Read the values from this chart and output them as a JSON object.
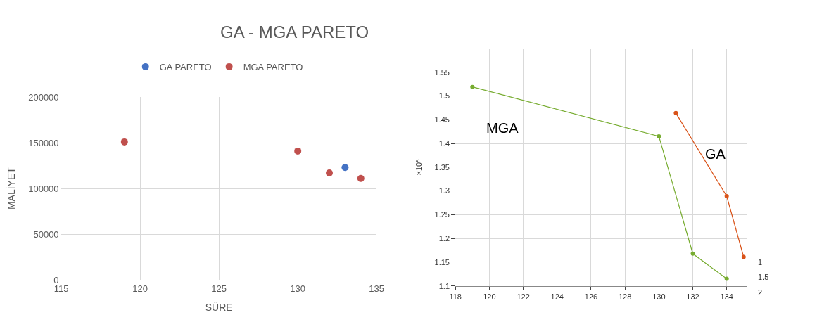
{
  "chart_data": [
    {
      "type": "scatter",
      "title": "GA - MGA PARETO",
      "xlabel": "SÜRE",
      "ylabel": "MALİYET",
      "xlim": [
        115,
        135
      ],
      "xticks": [
        115,
        120,
        125,
        130,
        135
      ],
      "ylim": [
        0,
        200000
      ],
      "yticks": [
        0,
        50000,
        100000,
        150000,
        200000
      ],
      "grid": true,
      "legend": "top",
      "marker": "circle",
      "series": [
        {
          "name": "GA PARETO",
          "color": "#4472c4",
          "x": [
            133
          ],
          "values": [
            123000
          ]
        },
        {
          "name": "MGA PARETO",
          "color": "#c0504d",
          "x": [
            119,
            130,
            132,
            134
          ],
          "values": [
            151000,
            141000,
            117000,
            111000
          ]
        }
      ]
    },
    {
      "type": "line",
      "ylabel": "×10⁵",
      "xlim": [
        118,
        135.2
      ],
      "xticks": [
        118,
        120,
        122,
        124,
        126,
        128,
        130,
        132,
        134
      ],
      "ylim": [
        1.1,
        1.6
      ],
      "yticks": [
        1.1,
        1.15,
        1.2,
        1.25,
        1.3,
        1.35,
        1.4,
        1.45,
        1.5,
        1.55
      ],
      "grid": true,
      "legend": false,
      "marker": "circle",
      "line_style": "solid",
      "annotations": [
        "1",
        "1.5",
        "2"
      ],
      "series": [
        {
          "name": "MGA",
          "color": "#77ac30",
          "x": [
            119,
            130,
            132,
            134
          ],
          "values": [
            1.519,
            1.415,
            1.168,
            1.115
          ]
        },
        {
          "name": "GA",
          "color": "#d95319",
          "x": [
            131,
            134,
            135
          ],
          "values": [
            1.464,
            1.289,
            1.161
          ]
        }
      ]
    }
  ]
}
